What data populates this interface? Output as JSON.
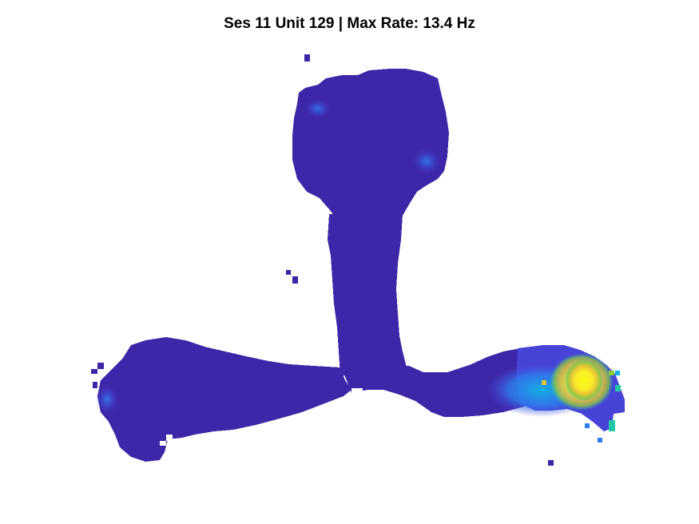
{
  "chart_data": {
    "type": "heatmap",
    "title": "Ses 11 Unit 129 | Max Rate: 13.4 Hz",
    "xlabel": "",
    "ylabel": "",
    "grid": false,
    "axes_visible": false,
    "colormap": "parula",
    "max_rate_hz": 13.4,
    "colormap_stops": [
      "#3E26A8",
      "#4743D6",
      "#2E7DEF",
      "#13B0E3",
      "#27C8A5",
      "#8CC93C",
      "#E1C23A",
      "#FAEB28",
      "#FAFA15"
    ],
    "occupancy_regions": [
      {
        "name": "top-bulb",
        "rate_hz": 0.1
      },
      {
        "name": "stem",
        "rate_hz": 0.1
      },
      {
        "name": "left-lobe",
        "rate_hz": 0.2
      },
      {
        "name": "bottom-arm",
        "rate_hz": 0.3
      },
      {
        "name": "right-arm",
        "rate_hz": 1.0
      }
    ],
    "hotspots": [
      {
        "name": "right-arm-peak",
        "rate_hz": 13.4
      },
      {
        "name": "right-arm-halo",
        "rate_hz": 9.5
      },
      {
        "name": "right-arm-shoulder",
        "rate_hz": 5.5
      },
      {
        "name": "top-bulb-left",
        "rate_hz": 1.6
      },
      {
        "name": "top-bulb-right",
        "rate_hz": 1.8
      },
      {
        "name": "left-lobe-edge",
        "rate_hz": 1.5
      }
    ]
  }
}
